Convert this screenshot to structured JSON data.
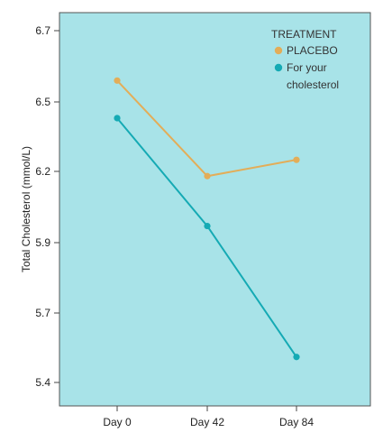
{
  "chart_data": {
    "type": "line",
    "ylabel": "Total Cholesterol (mmol/L)",
    "xlabel": "",
    "categories": [
      "Day 0",
      "Day 42",
      "Day 84"
    ],
    "y_ticks": [
      "6.7",
      "6.5",
      "6.2",
      "5.9",
      "5.7",
      "5.4"
    ],
    "legend": {
      "title": "TREATMENT",
      "placement": "top-right"
    },
    "series": [
      {
        "name": "PLACEBO",
        "name_lines": [
          "PLACEBO"
        ],
        "color": "#e3ad58",
        "values": [
          6.56,
          6.18,
          6.25
        ]
      },
      {
        "name": "For your cholesterol",
        "name_lines": [
          "For your",
          "cholesterol"
        ],
        "color": "#15aab4",
        "values": [
          6.43,
          5.97,
          5.51
        ]
      }
    ],
    "plot_background": "#a8e3e8",
    "grid": false
  }
}
